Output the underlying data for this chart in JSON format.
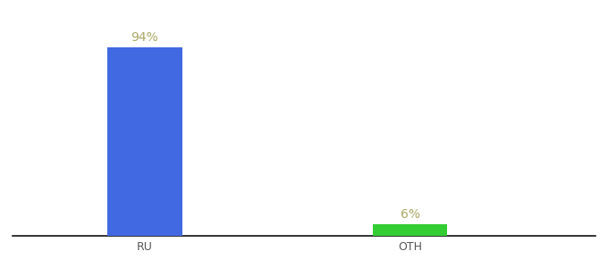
{
  "categories": [
    "RU",
    "OTH"
  ],
  "values": [
    94,
    6
  ],
  "bar_colors": [
    "#4169e1",
    "#33cc33"
  ],
  "label_color": "#aaa866",
  "label_fontsize": 10,
  "tick_fontsize": 9,
  "tick_color": "#555555",
  "background_color": "#ffffff",
  "ylim": [
    0,
    108
  ],
  "bar_width": 0.28,
  "bar_positions": [
    1,
    2
  ],
  "xlim": [
    0.5,
    2.7
  ]
}
